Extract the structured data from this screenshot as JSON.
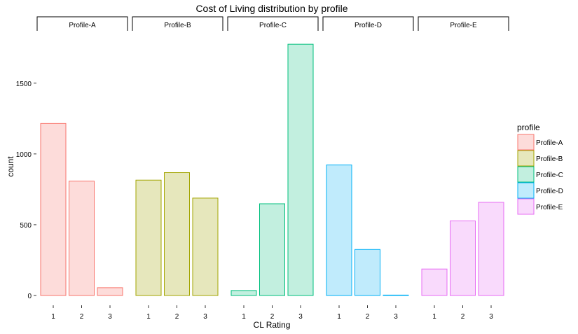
{
  "chart_data": {
    "type": "bar",
    "title": "Cost of Living distribution by profile",
    "xlabel": "CL Rating",
    "ylabel": "count",
    "ylim": [
      0,
      1850
    ],
    "yticks": [
      0,
      500,
      1000,
      1500
    ],
    "grid": false,
    "legend_position": "right",
    "legend_title": "profile",
    "facets": [
      {
        "name": "Profile-A",
        "categories": [
          "1",
          "2",
          "3"
        ],
        "values": [
          1215,
          808,
          55
        ],
        "stroke": "#f8766d",
        "fill": "#fddcda"
      },
      {
        "name": "Profile-B",
        "categories": [
          "1",
          "2",
          "3"
        ],
        "values": [
          815,
          868,
          688
        ],
        "stroke": "#a3a500",
        "fill": "#e6e7bc"
      },
      {
        "name": "Profile-C",
        "categories": [
          "1",
          "2",
          "3"
        ],
        "values": [
          35,
          648,
          1775
        ],
        "stroke": "#00bf7d",
        "fill": "#c2efdf"
      },
      {
        "name": "Profile-D",
        "categories": [
          "1",
          "2",
          "3"
        ],
        "values": [
          922,
          325,
          3
        ],
        "stroke": "#00b0f6",
        "fill": "#c0ebfc"
      },
      {
        "name": "Profile-E",
        "categories": [
          "1",
          "2",
          "3"
        ],
        "values": [
          187,
          527,
          658
        ],
        "stroke": "#e76bf3",
        "fill": "#f9dafc"
      }
    ]
  }
}
